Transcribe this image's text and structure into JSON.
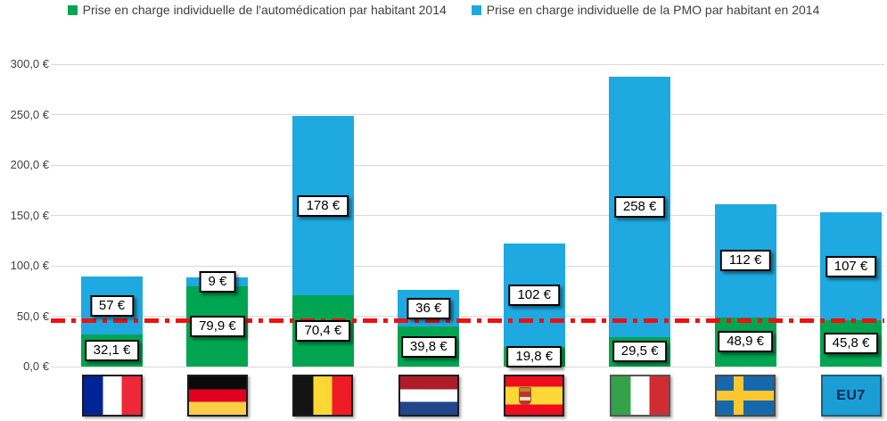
{
  "legend": [
    {
      "label": "Prise en charge individuelle de l'automédication par habitant 2014",
      "color": "#00A551"
    },
    {
      "label": "Prise en charge individuelle de la PMO par habitant en 2014",
      "color": "#1EA9E1"
    }
  ],
  "chart_data": {
    "type": "bar",
    "stacked": true,
    "orientation": "vertical",
    "grid": true,
    "legend_position": "top",
    "categories": [
      "france",
      "germany",
      "belgium",
      "netherlands",
      "spain",
      "italy",
      "sweden",
      "eu7"
    ],
    "category_icons": [
      "flag-france",
      "flag-germany",
      "flag-belgium",
      "flag-netherlands",
      "flag-spain",
      "flag-italy",
      "flag-sweden",
      "eu7-box"
    ],
    "eu7_label": "EU7",
    "series": [
      {
        "name": "Prise en charge individuelle de l'automédication par habitant 2014",
        "color": "#00A551",
        "values": [
          32.1,
          79.9,
          70.4,
          39.8,
          19.8,
          29.5,
          48.9,
          45.8
        ],
        "labels": [
          "32,1 €",
          "79,9 €",
          "70,4 €",
          "39,8 €",
          "19,8 €",
          "29,5 €",
          "48,9 €",
          "45,8 €"
        ]
      },
      {
        "name": "Prise en charge individuelle de la PMO par habitant en 2014",
        "color": "#1EA9E1",
        "values": [
          57,
          9,
          178,
          36,
          102,
          258,
          112,
          107
        ],
        "labels": [
          "57 €",
          "9 €",
          "178 €",
          "36 €",
          "102 €",
          "258 €",
          "112 €",
          "107 €"
        ]
      }
    ],
    "y_axis": {
      "min": 0,
      "max": 300,
      "tick_step": 50,
      "tick_labels": [
        "0,0 €",
        "50,0 €",
        "100,0 €",
        "150,0 €",
        "200,0 €",
        "250,0 €",
        "300,0 €"
      ]
    },
    "reference_line": {
      "value": 45.8,
      "color": "#EE1111",
      "style": "dash-dot"
    }
  }
}
